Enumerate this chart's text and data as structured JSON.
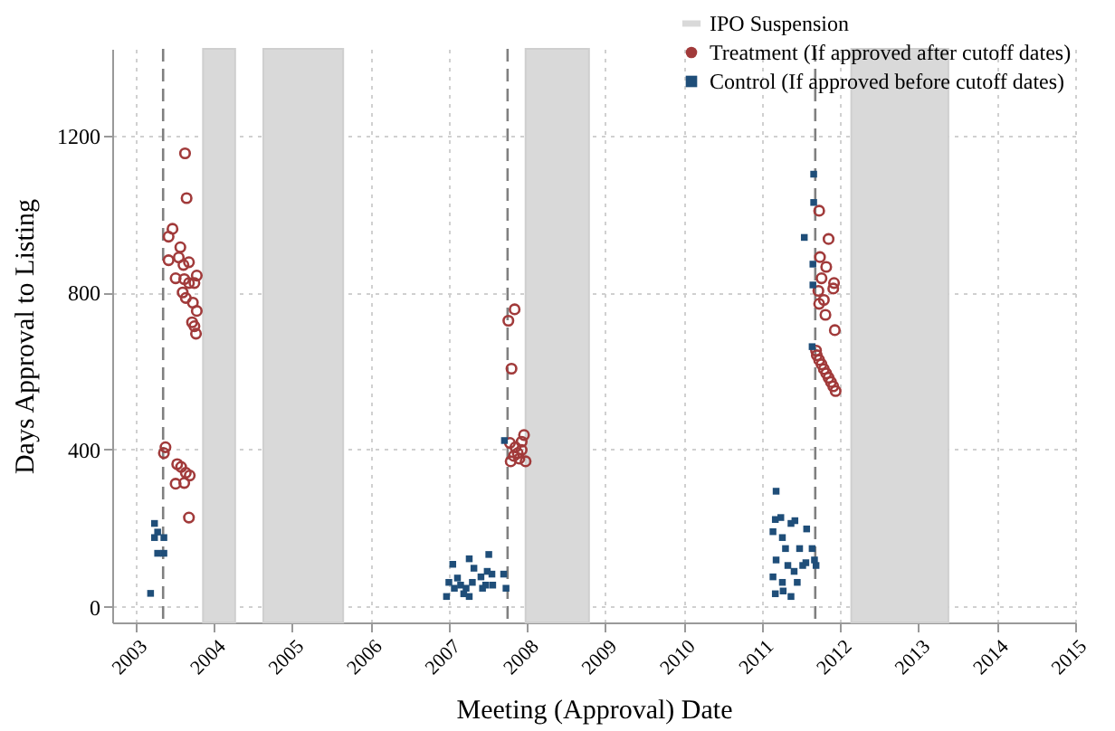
{
  "chart_data": {
    "type": "scatter",
    "xlabel": "Meeting (Approval) Date",
    "ylabel": "Days Approval to Listing",
    "xlim": [
      2002.7,
      2015
    ],
    "xticks": [
      2003,
      2004,
      2005,
      2006,
      2007,
      2008,
      2009,
      2010,
      2011,
      2012,
      2013,
      2014,
      2015
    ],
    "ylim": [
      -40,
      1420
    ],
    "yticks": [
      0,
      400,
      800,
      1200
    ],
    "grid": true,
    "legend": "top right",
    "bands": [
      {
        "axis": "x",
        "from": 2003.86,
        "to": 2004.27,
        "label": "IPO Suspension",
        "color": "#d9d9d9"
      },
      {
        "axis": "x",
        "from": 2004.63,
        "to": 2005.65,
        "color": "#d9d9d9"
      },
      {
        "axis": "x",
        "from": 2007.98,
        "to": 2008.79,
        "color": "#d9d9d9"
      },
      {
        "axis": "x",
        "from": 2012.14,
        "to": 2013.38,
        "color": "#d9d9d9"
      }
    ],
    "ref_lines": [
      {
        "axis": "x",
        "value": 2003.35,
        "color": "#808080",
        "line_style": "dashed"
      },
      {
        "axis": "x",
        "value": 2007.75,
        "color": "#808080",
        "line_style": "dashed"
      },
      {
        "axis": "x",
        "value": 2011.68,
        "color": "#808080",
        "line_style": "dashed"
      }
    ],
    "series": [
      {
        "name": "Treatment (If approved after cutoff dates)",
        "color": "#a13a3a",
        "marker": "circle",
        "x": [
          2003.63,
          2003.65,
          2003.47,
          2003.42,
          2003.57,
          2003.42,
          2003.55,
          2003.61,
          2003.68,
          2003.51,
          2003.62,
          2003.78,
          2003.68,
          2003.75,
          2003.6,
          2003.64,
          2003.73,
          2003.78,
          2003.72,
          2003.75,
          2003.77,
          2003.38,
          2003.36,
          2003.53,
          2003.58,
          2003.64,
          2003.69,
          2003.62,
          2003.51,
          2003.68,
          2007.84,
          2007.76,
          2007.8,
          2007.78,
          2007.85,
          2007.96,
          2007.93,
          2007.83,
          2007.9,
          2007.98,
          2007.79,
          2007.88,
          2007.93,
          2011.73,
          2011.85,
          2011.74,
          2011.82,
          2011.76,
          2011.92,
          2011.91,
          2011.72,
          2011.79,
          2011.73,
          2011.81,
          2011.93,
          2011.69,
          2011.7,
          2011.73,
          2011.76,
          2011.79,
          2011.82,
          2011.85,
          2011.88,
          2011.91,
          2011.94
        ],
        "values": [
          1154,
          1040,
          962,
          942,
          915,
          882,
          889,
          870,
          877,
          836,
          834,
          843,
          824,
          824,
          800,
          786,
          774,
          753,
          724,
          714,
          695,
          406,
          391,
          363,
          356,
          341,
          334,
          315,
          313,
          227,
          757,
          728,
          606,
          417,
          406,
          437,
          420,
          384,
          377,
          370,
          370,
          391,
          399,
          1008,
          936,
          890,
          865,
          836,
          824,
          810,
          804,
          781,
          771,
          743,
          704,
          652,
          640,
          628,
          617,
          605,
          594,
          583,
          572,
          561,
          549
        ]
      },
      {
        "name": "Control (If approved before cutoff dates)",
        "color": "#1f4e79",
        "marker": "square",
        "x": [
          2003.19,
          2003.24,
          2003.24,
          2003.28,
          2003.36,
          2003.28,
          2003.36,
          2007.05,
          2007.26,
          2007.51,
          2006.97,
          2007.0,
          2007.07,
          2007.15,
          2007.19,
          2007.26,
          2007.22,
          2007.3,
          2007.32,
          2007.41,
          2007.43,
          2007.49,
          2007.55,
          2007.56,
          2007.47,
          2007.7,
          2007.73,
          2007.71,
          2007.11,
          2011.66,
          2011.66,
          2011.54,
          2011.65,
          2011.65,
          2011.64,
          2011.18,
          2011.17,
          2011.24,
          2011.37,
          2011.42,
          2011.14,
          2011.57,
          2011.26,
          2011.3,
          2011.18,
          2011.33,
          2011.48,
          2011.64,
          2011.67,
          2011.56,
          2011.14,
          2011.26,
          2011.17,
          2011.27,
          2011.41,
          2011.45,
          2011.37,
          2011.52,
          2011.69
        ],
        "values": [
          34,
          212,
          176,
          190,
          176,
          136,
          136,
          108,
          122,
          133,
          26,
          62,
          47,
          55,
          33,
          26,
          47,
          62,
          98,
          76,
          47,
          90,
          83,
          55,
          55,
          83,
          47,
          423,
          73,
          1101,
          1029,
          940,
          872,
          819,
          662,
          294,
          222,
          227,
          212,
          219,
          191,
          198,
          176,
          148,
          119,
          105,
          148,
          148,
          119,
          112,
          76,
          62,
          33,
          40,
          90,
          62,
          26,
          105,
          105
        ]
      }
    ]
  }
}
